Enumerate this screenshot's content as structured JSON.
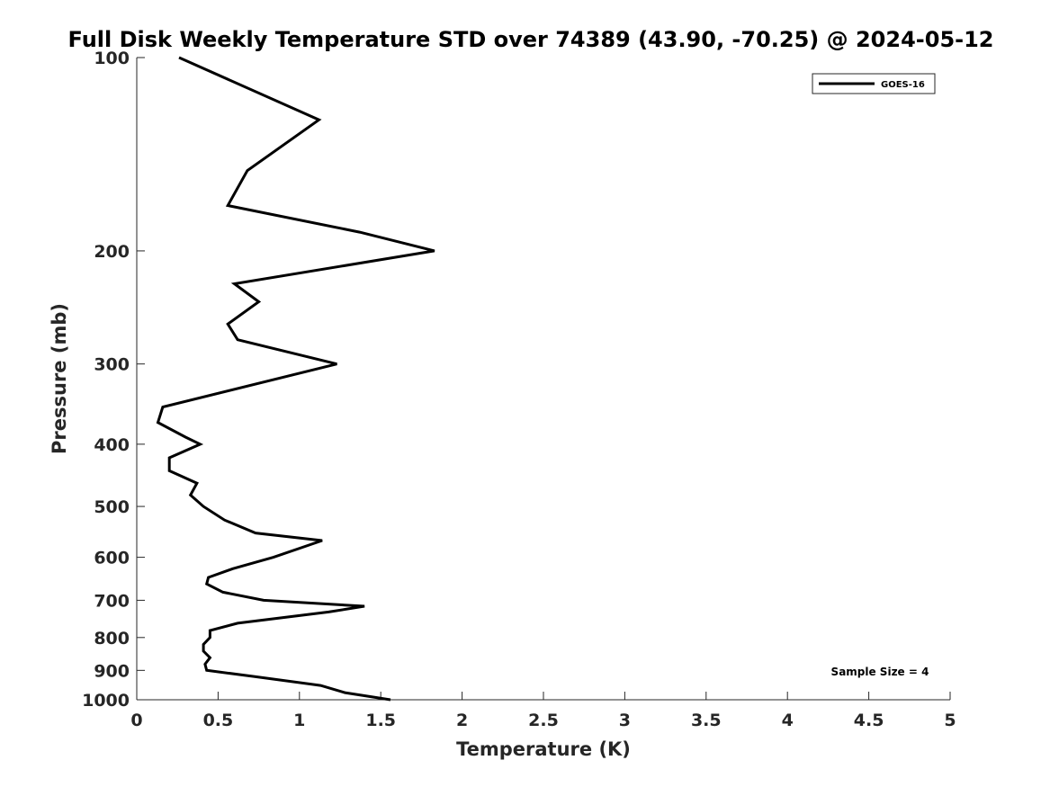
{
  "chart_data": {
    "type": "line",
    "title": "Full Disk Weekly Temperature STD over 74389 (43.90, -70.25) @ 2024-05-12",
    "xlabel": "Temperature (K)",
    "ylabel": "Pressure (mb)",
    "xlim": [
      0,
      5
    ],
    "ylim": [
      100,
      1000
    ],
    "y_scale": "log",
    "y_reversed": true,
    "x_ticks": [
      "0",
      "0.5",
      "1",
      "1.5",
      "2",
      "2.5",
      "3",
      "3.5",
      "4",
      "4.5",
      "5"
    ],
    "x_tick_values": [
      0,
      0.5,
      1,
      1.5,
      2,
      2.5,
      3,
      3.5,
      4,
      4.5,
      5
    ],
    "y_ticks": [
      "100",
      "200",
      "300",
      "400",
      "500",
      "600",
      "700",
      "800",
      "900",
      "1000"
    ],
    "y_tick_values": [
      100,
      200,
      300,
      400,
      500,
      600,
      700,
      800,
      900,
      1000
    ],
    "grid": false,
    "legend_position": "top-right",
    "color": "#000000",
    "series": [
      {
        "name": "GOES-16",
        "points": [
          [
            0.26,
            100
          ],
          [
            1.12,
            125
          ],
          [
            0.68,
            150
          ],
          [
            0.56,
            170
          ],
          [
            1.37,
            187
          ],
          [
            1.83,
            200
          ],
          [
            0.6,
            225
          ],
          [
            0.75,
            240
          ],
          [
            0.56,
            260
          ],
          [
            0.62,
            275
          ],
          [
            1.23,
            300
          ],
          [
            0.16,
            350
          ],
          [
            0.13,
            370
          ],
          [
            0.3,
            390
          ],
          [
            0.39,
            400
          ],
          [
            0.2,
            420
          ],
          [
            0.2,
            440
          ],
          [
            0.37,
            460
          ],
          [
            0.33,
            480
          ],
          [
            0.41,
            500
          ],
          [
            0.54,
            525
          ],
          [
            0.73,
            550
          ],
          [
            1.14,
            565
          ],
          [
            0.84,
            600
          ],
          [
            0.59,
            625
          ],
          [
            0.44,
            645
          ],
          [
            0.43,
            660
          ],
          [
            0.53,
            680
          ],
          [
            0.78,
            700
          ],
          [
            1.4,
            715
          ],
          [
            1.18,
            730
          ],
          [
            0.62,
            760
          ],
          [
            0.45,
            780
          ],
          [
            0.45,
            800
          ],
          [
            0.41,
            820
          ],
          [
            0.41,
            840
          ],
          [
            0.45,
            860
          ],
          [
            0.42,
            880
          ],
          [
            0.43,
            900
          ],
          [
            0.72,
            920
          ],
          [
            1.13,
            950
          ],
          [
            1.28,
            975
          ],
          [
            1.56,
            1000
          ]
        ]
      }
    ],
    "annotation": "Sample Size = 4"
  }
}
